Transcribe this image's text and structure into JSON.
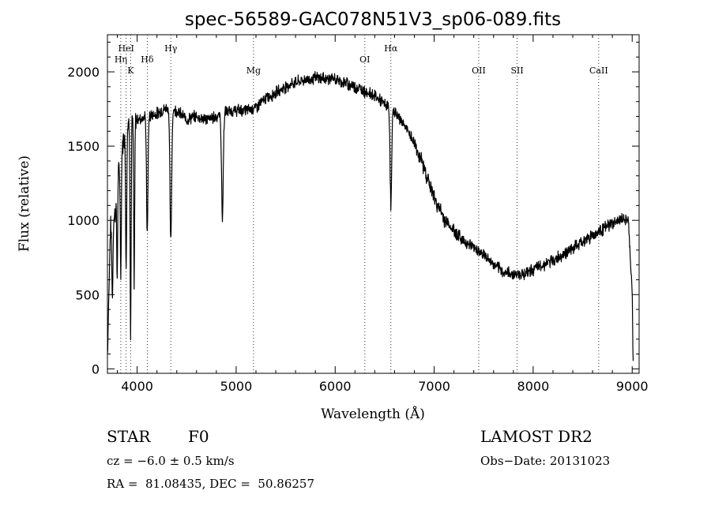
{
  "chart_data": {
    "type": "line",
    "title": "spec-56589-GAC078N51V3_sp06-089.fits",
    "xlabel": "Wavelength (Å)",
    "ylabel": "Flux (relative)",
    "xlim": [
      3700,
      9070
    ],
    "ylim": [
      -30,
      2250
    ],
    "x_ticks": [
      4000,
      5000,
      6000,
      7000,
      8000,
      9000
    ],
    "y_ticks": [
      0,
      500,
      1000,
      1500,
      2000
    ],
    "grid": false,
    "line_color": "#000000",
    "lines": [
      {
        "name": "Hη",
        "wavelength": 3835
      },
      {
        "name": "HeI",
        "wavelength": 3889
      },
      {
        "name": "K",
        "wavelength": 3934
      },
      {
        "name": "Hδ",
        "wavelength": 4102
      },
      {
        "name": "Hγ",
        "wavelength": 4340
      },
      {
        "name": "Mg",
        "wavelength": 5175
      },
      {
        "name": "OI",
        "wavelength": 6300
      },
      {
        "name": "Hα",
        "wavelength": 6563
      },
      {
        "name": "OII",
        "wavelength": 7450
      },
      {
        "name": "SII",
        "wavelength": 7838
      },
      {
        "name": "CaII",
        "wavelength": 8662
      }
    ],
    "continuum": [
      [
        3700,
        100
      ],
      [
        3730,
        950
      ],
      [
        3780,
        1050
      ],
      [
        3830,
        1450
      ],
      [
        3900,
        1650
      ],
      [
        4000,
        1680
      ],
      [
        4100,
        1700
      ],
      [
        4200,
        1720
      ],
      [
        4300,
        1760
      ],
      [
        4400,
        1740
      ],
      [
        4500,
        1680
      ],
      [
        4600,
        1700
      ],
      [
        4700,
        1680
      ],
      [
        4800,
        1700
      ],
      [
        4900,
        1730
      ],
      [
        5000,
        1740
      ],
      [
        5100,
        1740
      ],
      [
        5200,
        1760
      ],
      [
        5300,
        1820
      ],
      [
        5400,
        1860
      ],
      [
        5500,
        1900
      ],
      [
        5600,
        1930
      ],
      [
        5800,
        1960
      ],
      [
        6000,
        1950
      ],
      [
        6200,
        1900
      ],
      [
        6300,
        1870
      ],
      [
        6400,
        1840
      ],
      [
        6500,
        1780
      ],
      [
        6600,
        1730
      ],
      [
        6700,
        1640
      ],
      [
        6800,
        1520
      ],
      [
        6900,
        1350
      ],
      [
        7000,
        1150
      ],
      [
        7100,
        1010
      ],
      [
        7200,
        930
      ],
      [
        7300,
        860
      ],
      [
        7400,
        820
      ],
      [
        7500,
        770
      ],
      [
        7600,
        700
      ],
      [
        7700,
        650
      ],
      [
        7800,
        640
      ],
      [
        7900,
        640
      ],
      [
        8000,
        670
      ],
      [
        8200,
        730
      ],
      [
        8400,
        810
      ],
      [
        8600,
        900
      ],
      [
        8800,
        980
      ],
      [
        8900,
        1010
      ],
      [
        8960,
        1000
      ],
      [
        9000,
        520
      ],
      [
        9010,
        20
      ]
    ],
    "absorption": [
      {
        "x": 3750,
        "depth": 500,
        "width": 8
      },
      {
        "x": 3798,
        "depth": 600,
        "width": 6
      },
      {
        "x": 3835,
        "depth": 800,
        "width": 8
      },
      {
        "x": 3889,
        "depth": 900,
        "width": 8
      },
      {
        "x": 3934,
        "depth": 1450,
        "width": 7
      },
      {
        "x": 3970,
        "depth": 1100,
        "width": 7
      },
      {
        "x": 4102,
        "depth": 800,
        "width": 10
      },
      {
        "x": 4340,
        "depth": 900,
        "width": 12
      },
      {
        "x": 4861,
        "depth": 700,
        "width": 12
      },
      {
        "x": 6563,
        "depth": 650,
        "width": 11
      }
    ],
    "noise_amplitude": 60
  },
  "info": {
    "object_type": "STAR",
    "subclass": "F0",
    "survey": "LAMOST DR2",
    "cz": "cz = −6.0 ± 0.5 km/s",
    "obs_date": "Obs−Date: 20131023",
    "coords": "RA =  81.08435, DEC =  50.86257"
  }
}
